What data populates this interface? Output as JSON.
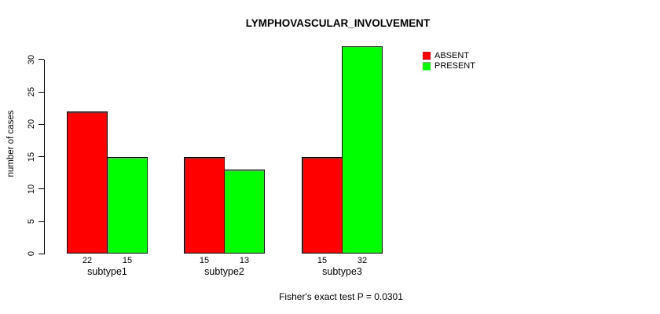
{
  "chart_data": {
    "type": "bar",
    "title": "LYMPHOVASCULAR_INVOLVEMENT",
    "categories": [
      "subtype1",
      "subtype2",
      "subtype3"
    ],
    "series": [
      {
        "name": "ABSENT",
        "color": "#ff0000",
        "values": [
          22,
          15,
          15
        ]
      },
      {
        "name": "PRESENT",
        "color": "#00ff00",
        "values": [
          15,
          13,
          32
        ]
      }
    ],
    "bar_value_labels": [
      [
        22,
        15
      ],
      [
        15,
        13
      ],
      [
        15,
        32
      ]
    ],
    "xlabel": "",
    "ylabel": "number of cases",
    "ylim": [
      0,
      30
    ],
    "yticks": [
      0,
      5,
      10,
      15,
      20,
      25,
      30
    ],
    "grid": false,
    "legend_position": "top-right",
    "annotation": "Fisher's exact test P = 0.0301"
  },
  "colors": {
    "absent": "#ff0000",
    "present": "#00ff00",
    "axis": "#000000",
    "background": "#ffffff"
  }
}
